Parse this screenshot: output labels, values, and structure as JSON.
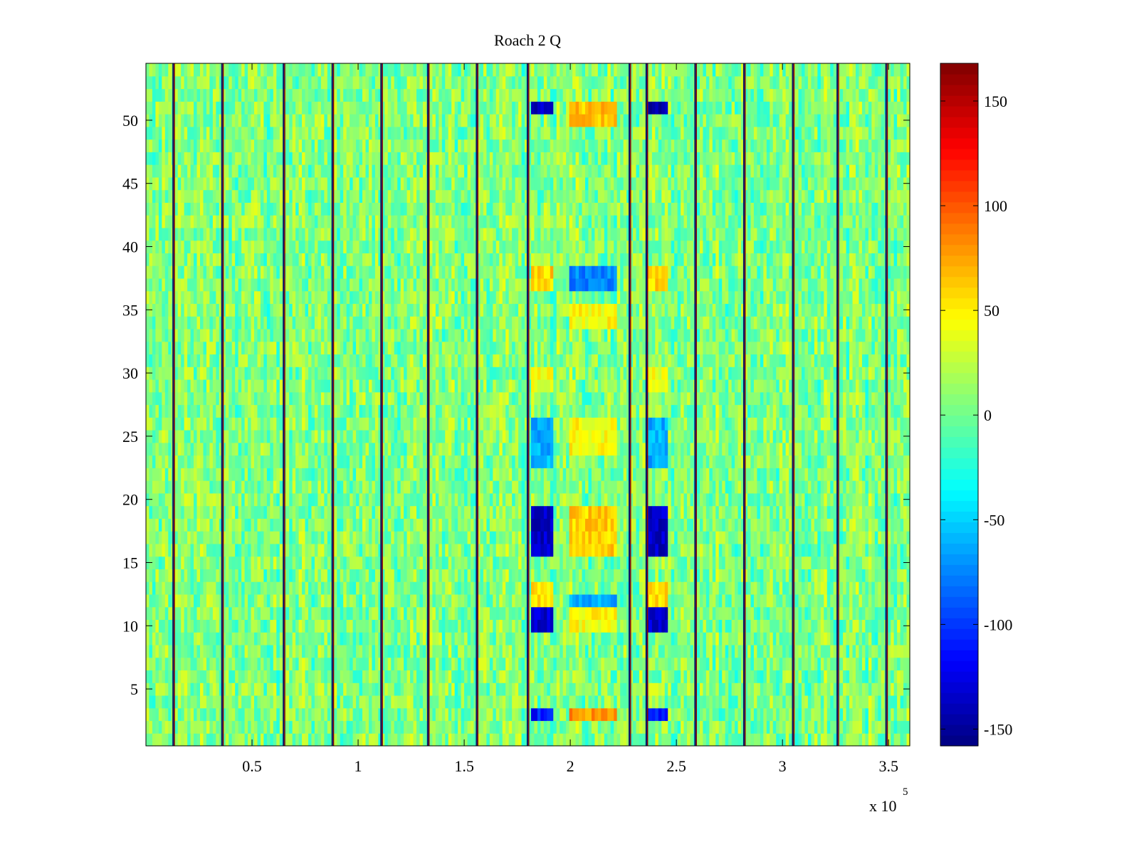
{
  "chart_data": {
    "type": "heatmap",
    "title": "Roach 2 Q",
    "xlabel": "",
    "ylabel": "",
    "x_exponent_label": {
      "base": "x 10",
      "exponent": "5"
    },
    "xlim": [
      0,
      3.6
    ],
    "ylim": [
      0.5,
      54.5
    ],
    "x_ticks": [
      {
        "value": 0.5,
        "label": "0.5"
      },
      {
        "value": 1.0,
        "label": "1"
      },
      {
        "value": 1.5,
        "label": "1.5"
      },
      {
        "value": 2.0,
        "label": "2"
      },
      {
        "value": 2.5,
        "label": "2.5"
      },
      {
        "value": 3.0,
        "label": "3"
      },
      {
        "value": 3.5,
        "label": "3.5"
      }
    ],
    "y_ticks": [
      {
        "value": 5,
        "label": "5"
      },
      {
        "value": 10,
        "label": "10"
      },
      {
        "value": 15,
        "label": "15"
      },
      {
        "value": 20,
        "label": "20"
      },
      {
        "value": 25,
        "label": "25"
      },
      {
        "value": 30,
        "label": "30"
      },
      {
        "value": 35,
        "label": "35"
      },
      {
        "value": 40,
        "label": "40"
      },
      {
        "value": 45,
        "label": "45"
      },
      {
        "value": 50,
        "label": "50"
      }
    ],
    "colorbar": {
      "colormap": "jet",
      "clim": [
        -158,
        168
      ],
      "ticks": [
        {
          "value": 150,
          "label": "150"
        },
        {
          "value": 100,
          "label": "100"
        },
        {
          "value": 50,
          "label": "50"
        },
        {
          "value": 0,
          "label": "0"
        },
        {
          "value": -50,
          "label": "-50"
        },
        {
          "value": -100,
          "label": "-100"
        },
        {
          "value": -150,
          "label": "-150"
        }
      ]
    },
    "rows": 54,
    "columns": 240,
    "background_level": 5,
    "noise_amplitude": 28,
    "dark_column_positions_x1e5": [
      0.13,
      0.36,
      0.65,
      0.88,
      1.11,
      1.33,
      1.56,
      1.8,
      2.28,
      2.36,
      2.59,
      2.82,
      3.05,
      3.26,
      3.49
    ],
    "bands": [
      {
        "x_range": [
          1.82,
          1.92
        ],
        "rows": [
          51,
          51
        ],
        "value": -140
      },
      {
        "x_range": [
          1.82,
          1.92
        ],
        "rows": [
          16,
          19
        ],
        "value": -135
      },
      {
        "x_range": [
          1.82,
          1.92
        ],
        "rows": [
          10,
          11
        ],
        "value": -130
      },
      {
        "x_range": [
          1.82,
          1.92
        ],
        "rows": [
          3,
          3
        ],
        "value": -110
      },
      {
        "x_range": [
          1.82,
          1.92
        ],
        "rows": [
          37,
          38
        ],
        "value": 60
      },
      {
        "x_range": [
          1.82,
          1.92
        ],
        "rows": [
          12,
          13
        ],
        "value": 55
      },
      {
        "x_range": [
          1.82,
          1.92
        ],
        "rows": [
          29,
          30
        ],
        "value": 40
      },
      {
        "x_range": [
          1.82,
          1.92
        ],
        "rows": [
          23,
          26
        ],
        "value": -60
      },
      {
        "x_range": [
          2.36,
          2.46
        ],
        "rows": [
          51,
          51
        ],
        "value": -140
      },
      {
        "x_range": [
          2.36,
          2.46
        ],
        "rows": [
          16,
          19
        ],
        "value": -135
      },
      {
        "x_range": [
          2.36,
          2.46
        ],
        "rows": [
          10,
          11
        ],
        "value": -130
      },
      {
        "x_range": [
          2.36,
          2.46
        ],
        "rows": [
          3,
          3
        ],
        "value": -110
      },
      {
        "x_range": [
          2.36,
          2.46
        ],
        "rows": [
          37,
          38
        ],
        "value": 60
      },
      {
        "x_range": [
          2.36,
          2.46
        ],
        "rows": [
          12,
          13
        ],
        "value": 55
      },
      {
        "x_range": [
          2.36,
          2.46
        ],
        "rows": [
          29,
          30
        ],
        "value": 40
      },
      {
        "x_range": [
          2.36,
          2.46
        ],
        "rows": [
          23,
          26
        ],
        "value": -60
      },
      {
        "x_range": [
          2.0,
          2.22
        ],
        "rows": [
          16,
          19
        ],
        "value": 60
      },
      {
        "x_range": [
          2.0,
          2.22
        ],
        "rows": [
          50,
          51
        ],
        "value": 65
      },
      {
        "x_range": [
          2.0,
          2.22
        ],
        "rows": [
          24,
          26
        ],
        "value": 45
      },
      {
        "x_range": [
          2.0,
          2.22
        ],
        "rows": [
          10,
          11
        ],
        "value": 45
      },
      {
        "x_range": [
          2.0,
          2.22
        ],
        "rows": [
          3,
          3
        ],
        "value": 80
      },
      {
        "x_range": [
          2.0,
          2.22
        ],
        "rows": [
          34,
          35
        ],
        "value": 45
      },
      {
        "x_range": [
          2.0,
          2.22
        ],
        "rows": [
          37,
          38
        ],
        "value": -75
      },
      {
        "x_range": [
          2.0,
          2.22
        ],
        "rows": [
          12,
          12
        ],
        "value": -65
      }
    ]
  }
}
